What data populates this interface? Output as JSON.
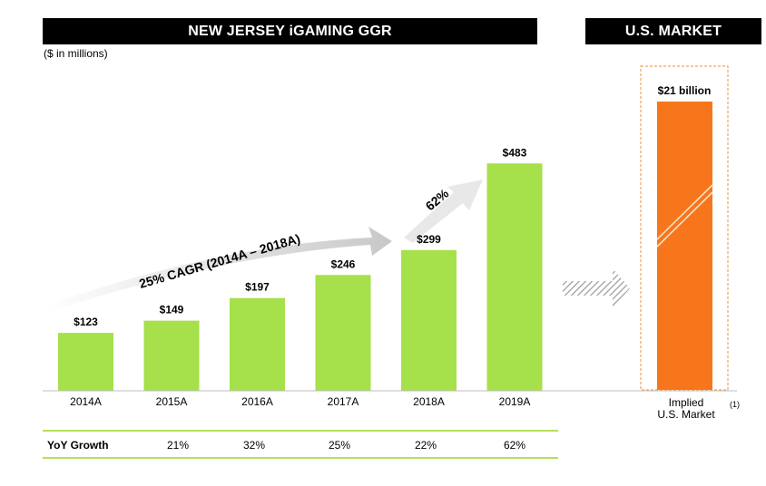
{
  "header_left": "NEW JERSEY iGAMING GGR",
  "header_right": "U.S. MARKET",
  "units_note": "($ in millions)",
  "cagr_label": "25% CAGR (2014A – 2018A)",
  "growth_arrow_label": "62%",
  "yoy": {
    "label": "YoY Growth",
    "values": [
      "21%",
      "32%",
      "25%",
      "22%",
      "62%"
    ]
  },
  "implied": {
    "line1": "Implied",
    "line2": "U.S. Market",
    "footnote": "(1)",
    "value_label": "$21 billion"
  },
  "colors": {
    "bar_green": "#a6e04a",
    "bar_orange": "#f7761b",
    "header_bg": "#000000",
    "rule_green": "#b5e05a",
    "arrow_grey": "#d9d9d9"
  },
  "chart_data": {
    "type": "bar",
    "title": "NEW JERSEY iGAMING GGR",
    "ylabel": "($ in millions)",
    "categories": [
      "2014A",
      "2015A",
      "2016A",
      "2017A",
      "2018A",
      "2019A"
    ],
    "values": [
      123,
      149,
      197,
      246,
      299,
      483
    ],
    "data_labels": [
      "$123",
      "$149",
      "$197",
      "$246",
      "$299",
      "$483"
    ],
    "ylim": [
      0,
      520
    ],
    "grid": false
  }
}
